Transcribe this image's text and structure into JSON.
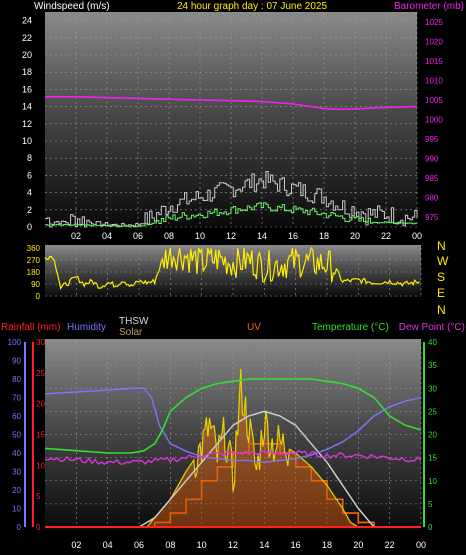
{
  "header": {
    "left": "Windspeed (m/s)",
    "center": "24 hour graph day : 07 June 2025",
    "right": "Barometer (mb)"
  },
  "bottom_header": {
    "rainfall": "Rainfall (mm)",
    "humidity": "Humidity",
    "thsw": "THSW",
    "solar": "Solar",
    "uv": "UV",
    "temperature": "Temperature (°C)",
    "dewpoint": "Dew Point (°C)"
  },
  "compass": [
    "N",
    "W",
    "S",
    "E",
    "N"
  ],
  "colors": {
    "windspeed": "#c8c8c8",
    "windavg": "#66ee66",
    "barometer": "#ee22ee",
    "direction": "#ffee00",
    "temperature": "#33dd33",
    "dewpoint": "#dd33dd",
    "humidity": "#7777ff",
    "solar": "#e8d200",
    "solar_fill": "#d08030",
    "thsw": "#cccccc",
    "rainfall": "#ff2020",
    "uv": "#ff6600"
  },
  "chart_data": [
    {
      "id": "wind",
      "type": "line",
      "x_ticks": [
        "02",
        "04",
        "06",
        "08",
        "10",
        "12",
        "14",
        "16",
        "18",
        "20",
        "22",
        "00"
      ],
      "y_left_ticks": [
        0,
        2,
        4,
        6,
        8,
        10,
        12,
        14,
        16,
        18,
        20,
        22,
        24
      ],
      "y_left_range": [
        0,
        25
      ],
      "y_right_ticks": [
        975,
        980,
        985,
        990,
        995,
        1000,
        1005,
        1010,
        1015,
        1020,
        1025
      ],
      "y_right_range": [
        972.5,
        1027.5
      ],
      "grid": true,
      "series": [
        {
          "key": "gust",
          "hours": [
            0,
            1,
            2,
            3,
            4,
            5,
            6,
            7,
            8,
            9,
            10,
            11,
            12,
            13,
            14,
            15,
            16,
            17,
            18,
            19,
            20,
            21,
            22,
            23,
            24
          ],
          "values": [
            1,
            0.5,
            1,
            0.5,
            0.3,
            0.2,
            0.3,
            1.2,
            2.5,
            3,
            3.5,
            4,
            4.5,
            5,
            5.5,
            5,
            4.5,
            4,
            3.5,
            2.5,
            2,
            1.5,
            1.5,
            1.2,
            1
          ]
        },
        {
          "key": "avg",
          "hours": [
            0,
            1,
            2,
            3,
            4,
            5,
            6,
            7,
            8,
            9,
            10,
            11,
            12,
            13,
            14,
            15,
            16,
            17,
            18,
            19,
            20,
            21,
            22,
            23,
            24
          ],
          "values": [
            0.3,
            0.2,
            0.2,
            0.2,
            0.1,
            0.1,
            0.1,
            0.5,
            1,
            1.3,
            1.5,
            1.7,
            2,
            2.2,
            2.4,
            2.2,
            2,
            1.8,
            1.5,
            1.2,
            0.8,
            0.6,
            0.5,
            0.5,
            0.4
          ]
        },
        {
          "key": "baro",
          "hours": [
            0,
            2,
            4,
            6,
            8,
            10,
            12,
            14,
            16,
            18,
            19,
            20,
            22,
            24
          ],
          "values": [
            1005.8,
            1005.8,
            1005.6,
            1005.4,
            1005.2,
            1005.0,
            1004.8,
            1004.6,
            1004.0,
            1002.8,
            1002.6,
            1002.7,
            1003.1,
            1003.3
          ]
        }
      ]
    },
    {
      "id": "direction",
      "type": "line",
      "y_ticks": [
        0,
        90,
        180,
        270,
        360
      ],
      "y_range": [
        0,
        360
      ],
      "grid": true,
      "series": [
        {
          "key": "dir",
          "hours": [
            0,
            0.5,
            0.8,
            1,
            2,
            2.5,
            3,
            3.5,
            4,
            4.5,
            5,
            5.5,
            6,
            6.5,
            7,
            7.5,
            8,
            9,
            10,
            11,
            12,
            13,
            14,
            15,
            16,
            17,
            18,
            18.5,
            19,
            20,
            21,
            22,
            23,
            24
          ],
          "values": [
            290,
            300,
            180,
            60,
            140,
            90,
            110,
            70,
            100,
            80,
            120,
            70,
            110,
            100,
            110,
            270,
            320,
            300,
            250,
            280,
            250,
            270,
            220,
            240,
            260,
            250,
            240,
            210,
            110,
            120,
            100,
            110,
            90,
            110
          ]
        }
      ]
    },
    {
      "id": "weather",
      "type": "line",
      "x_ticks": [
        "02",
        "04",
        "06",
        "08",
        "10",
        "12",
        "14",
        "16",
        "18",
        "20",
        "22",
        "00"
      ],
      "rain_ticks": [
        0,
        5,
        10,
        15,
        20,
        25,
        30
      ],
      "rain_range": [
        0,
        30
      ],
      "humidity_ticks": [
        0,
        10,
        20,
        30,
        40,
        50,
        60,
        70,
        80,
        90,
        100
      ],
      "humidity_range": [
        0,
        100
      ],
      "temp_ticks": [
        0,
        5,
        10,
        15,
        20,
        25,
        30,
        35,
        40
      ],
      "temp_range": [
        0,
        40
      ],
      "grid": true,
      "series": [
        {
          "key": "humidity",
          "hours": [
            0,
            2,
            4,
            5.5,
            6.3,
            6.8,
            7.3,
            8,
            9,
            10,
            11,
            12,
            13,
            14,
            15,
            16,
            17,
            18,
            19,
            20,
            21,
            22,
            23,
            24
          ],
          "values": [
            72,
            73,
            74,
            75,
            75,
            70,
            55,
            45,
            41,
            38,
            37,
            36,
            36,
            35,
            36,
            37,
            39,
            42,
            46,
            52,
            60,
            65,
            68,
            70
          ]
        },
        {
          "key": "temperature",
          "hours": [
            0,
            2,
            4,
            5.5,
            6.3,
            7,
            7.5,
            8,
            9,
            10,
            11,
            12,
            13,
            14,
            15,
            16,
            17,
            18,
            19,
            20,
            21,
            22,
            23,
            24
          ],
          "values": [
            17,
            16.5,
            16,
            16,
            16.5,
            18,
            21,
            25,
            28,
            30,
            31,
            31.5,
            32,
            32,
            32,
            32,
            32,
            31.5,
            31,
            30,
            28,
            24,
            22,
            21
          ]
        },
        {
          "key": "dewpoint",
          "hours": [
            0,
            2,
            4,
            6,
            8,
            10,
            12,
            14,
            16,
            18,
            20,
            22,
            24
          ],
          "values": [
            15,
            14.5,
            14,
            14,
            14.5,
            15.5,
            16,
            16,
            16,
            15.5,
            15.5,
            15,
            14.5
          ]
        },
        {
          "key": "solar",
          "hours": [
            0,
            6.5,
            7,
            8,
            9,
            10,
            10.5,
            11,
            11.5,
            12,
            12.5,
            13,
            13.5,
            14,
            14.5,
            15,
            16,
            17,
            18,
            19,
            19.5,
            20,
            24
          ],
          "values": [
            0,
            0,
            2,
            6,
            12,
            17,
            22,
            15,
            20,
            10,
            30,
            22,
            12,
            23,
            18,
            18,
            16,
            13,
            9,
            4,
            1,
            0,
            0
          ]
        },
        {
          "key": "thsw",
          "hours": [
            0,
            6,
            7,
            8,
            9,
            10,
            11,
            12,
            13,
            14,
            15,
            16,
            17,
            18,
            19,
            20,
            21,
            24
          ],
          "values": [
            0,
            0,
            2,
            6,
            10,
            14,
            18,
            22,
            24,
            25,
            24,
            22,
            18,
            14,
            9,
            4,
            0,
            0
          ]
        },
        {
          "key": "uv",
          "hours": [
            7,
            8,
            9,
            10,
            11,
            12,
            13,
            14,
            15,
            16,
            17,
            18,
            19,
            20
          ],
          "values": [
            1,
            3,
            6,
            10,
            13,
            16,
            18,
            18,
            16,
            13,
            10,
            6,
            3,
            1
          ]
        },
        {
          "key": "rainfall",
          "hours": [
            0,
            24
          ],
          "values": [
            0,
            0
          ]
        }
      ]
    }
  ]
}
